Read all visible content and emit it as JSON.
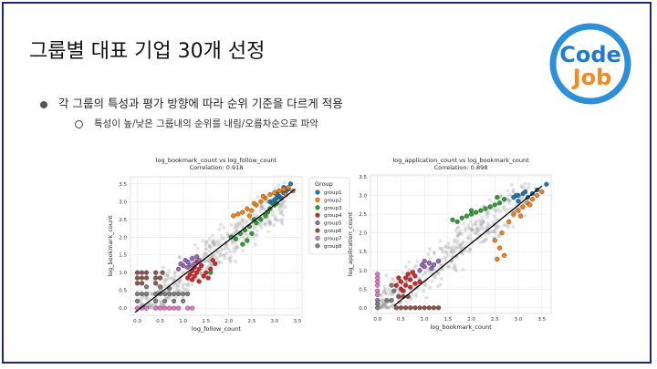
{
  "slide": {
    "title": "그룹별 대표 기업 30개 선정",
    "bullet1": "각 그룹의 특성과 평가 방향에 따라 순위 기준을 다르게 적용",
    "bullet2": "특성이 높/낮은 그룹내의 순위를 내림/오름차순으로 파악"
  },
  "logo": {
    "line1": "Code",
    "line2": "Job",
    "ring_color": "#2e8fd9",
    "text_color_top": "#1f7ad1",
    "text_color_bottom": "#f08a24"
  },
  "colors": {
    "group1": "#1f77b4",
    "group2": "#ff7f0e",
    "group3": "#2ca02c",
    "group4": "#d62728",
    "group5": "#9467bd",
    "group6": "#8c564b",
    "group7": "#e377c2",
    "group8": "#7f7f7f"
  },
  "chart_data": [
    {
      "type": "scatter",
      "title": "log_bookmark_count vs log_follow_count",
      "subtitle": "Correlation: 0.918",
      "xlabel": "log_follow_count",
      "ylabel": "log_bookmark_count",
      "xlim": [
        -0.15,
        3.6
      ],
      "ylim": [
        -0.2,
        3.7
      ],
      "xticks": [
        "0.0",
        "0.5",
        "1.0",
        "1.5",
        "2.0",
        "2.5",
        "3.0",
        "3.5"
      ],
      "yticks": [
        "0.0",
        "0.5",
        "1.0",
        "1.5",
        "2.0",
        "2.5",
        "3.0",
        "3.5"
      ],
      "grid": true,
      "legend": {
        "title": "Group",
        "placement": "outside-right",
        "entries": [
          "group1",
          "group2",
          "group3",
          "group4",
          "group5",
          "group6",
          "group7",
          "group8"
        ]
      },
      "regression": [
        [
          -0.05,
          -0.12
        ],
        [
          3.45,
          3.35
        ]
      ],
      "series": [
        {
          "name": "group1",
          "points": [
            [
              2.9,
              3.0
            ],
            [
              3.0,
              3.05
            ],
            [
              3.05,
              3.1
            ],
            [
              3.1,
              3.15
            ],
            [
              3.15,
              3.1
            ],
            [
              3.2,
              3.25
            ],
            [
              3.3,
              3.35
            ],
            [
              3.35,
              3.5
            ],
            [
              2.95,
              2.95
            ],
            [
              3.05,
              3.2
            ],
            [
              3.25,
              3.3
            ],
            [
              3.1,
              3.3
            ],
            [
              3.2,
              3.4
            ]
          ]
        },
        {
          "name": "group2",
          "points": [
            [
              2.1,
              2.6
            ],
            [
              2.2,
              2.65
            ],
            [
              2.3,
              2.7
            ],
            [
              2.4,
              2.8
            ],
            [
              2.5,
              2.75
            ],
            [
              2.6,
              2.9
            ],
            [
              2.7,
              3.0
            ],
            [
              2.8,
              3.1
            ],
            [
              2.9,
              3.2
            ],
            [
              3.0,
              3.25
            ],
            [
              3.1,
              3.3
            ],
            [
              3.2,
              3.35
            ],
            [
              3.3,
              3.4
            ],
            [
              3.4,
              3.3
            ],
            [
              2.55,
              2.95
            ],
            [
              2.45,
              2.6
            ],
            [
              2.75,
              3.15
            ],
            [
              3.25,
              3.2
            ]
          ]
        },
        {
          "name": "group3",
          "points": [
            [
              2.05,
              2.0
            ],
            [
              2.15,
              1.95
            ],
            [
              2.25,
              2.1
            ],
            [
              2.35,
              2.2
            ],
            [
              2.45,
              2.3
            ],
            [
              2.5,
              2.1
            ],
            [
              2.6,
              2.4
            ],
            [
              2.7,
              2.5
            ],
            [
              2.8,
              2.6
            ],
            [
              2.9,
              2.8
            ],
            [
              3.0,
              2.9
            ],
            [
              2.85,
              2.7
            ],
            [
              1.6,
              1.0
            ],
            [
              2.4,
              1.9
            ],
            [
              2.55,
              2.5
            ],
            [
              3.05,
              2.95
            ],
            [
              2.3,
              1.8
            ]
          ]
        },
        {
          "name": "group4",
          "points": [
            [
              1.1,
              0.85
            ],
            [
              1.15,
              0.95
            ],
            [
              1.2,
              1.05
            ],
            [
              1.25,
              0.9
            ],
            [
              1.3,
              1.0
            ],
            [
              1.35,
              1.1
            ],
            [
              1.4,
              1.2
            ],
            [
              1.5,
              1.0
            ],
            [
              1.6,
              1.1
            ],
            [
              1.45,
              0.9
            ],
            [
              1.2,
              0.8
            ],
            [
              1.3,
              1.3
            ],
            [
              1.7,
              1.25
            ],
            [
              1.55,
              0.85
            ],
            [
              1.35,
              0.75
            ],
            [
              1.25,
              1.15
            ],
            [
              1.65,
              1.35
            ]
          ]
        },
        {
          "name": "group5",
          "points": [
            [
              0.9,
              1.1
            ],
            [
              1.0,
              1.2
            ],
            [
              1.1,
              1.3
            ],
            [
              1.2,
              1.4
            ],
            [
              1.3,
              1.45
            ],
            [
              1.15,
              1.2
            ],
            [
              0.95,
              1.25
            ],
            [
              1.05,
              1.35
            ],
            [
              1.25,
              1.25
            ],
            [
              1.35,
              1.35
            ],
            [
              1.1,
              1.15
            ]
          ]
        },
        {
          "name": "group6",
          "points": [
            [
              0.0,
              0.7
            ],
            [
              0.0,
              0.85
            ],
            [
              0.0,
              1.0
            ],
            [
              0.1,
              0.7
            ],
            [
              0.1,
              0.85
            ],
            [
              0.1,
              1.0
            ],
            [
              0.2,
              0.85
            ],
            [
              0.2,
              1.0
            ],
            [
              0.4,
              0.7
            ],
            [
              0.4,
              0.85
            ],
            [
              0.4,
              1.0
            ],
            [
              0.5,
              0.85
            ],
            [
              0.55,
              1.0
            ]
          ]
        },
        {
          "name": "group7",
          "points": [
            [
              0.0,
              0.0
            ],
            [
              0.1,
              0.0
            ],
            [
              0.2,
              0.0
            ],
            [
              0.4,
              0.0
            ],
            [
              0.5,
              0.0
            ],
            [
              0.6,
              0.0
            ],
            [
              0.7,
              0.0
            ],
            [
              0.8,
              0.0
            ],
            [
              0.9,
              0.0
            ],
            [
              1.1,
              0.0
            ],
            [
              1.2,
              0.0
            ]
          ]
        },
        {
          "name": "group8",
          "points": [
            [
              0.0,
              0.4
            ],
            [
              0.1,
              0.4
            ],
            [
              0.2,
              0.4
            ],
            [
              0.4,
              0.4
            ],
            [
              0.5,
              0.4
            ],
            [
              0.6,
              0.4
            ],
            [
              0.7,
              0.4
            ],
            [
              0.8,
              0.4
            ],
            [
              0.9,
              0.4
            ],
            [
              1.0,
              0.4
            ],
            [
              1.1,
              0.4
            ],
            [
              0.0,
              0.2
            ],
            [
              0.4,
              0.2
            ],
            [
              0.6,
              0.2
            ],
            [
              0.8,
              0.2
            ],
            [
              1.0,
              0.2
            ],
            [
              0.2,
              0.6
            ],
            [
              0.5,
              0.6
            ],
            [
              0.7,
              0.55
            ]
          ]
        }
      ]
    },
    {
      "type": "scatter",
      "title": "log_application_count vs log_bookmark_count",
      "subtitle": "Correlation: 0.898",
      "xlabel": "log_bookmark_count",
      "ylabel": "log_application_count",
      "xlim": [
        -0.15,
        3.7
      ],
      "ylim": [
        -0.15,
        3.55
      ],
      "xticks": [
        "0.0",
        "0.5",
        "1.0",
        "1.5",
        "2.0",
        "2.5",
        "3.0",
        "3.5"
      ],
      "yticks": [
        "0.0",
        "0.5",
        "1.0",
        "1.5",
        "2.0",
        "2.5",
        "3.0",
        "3.5"
      ],
      "grid": true,
      "regression": [
        [
          0.35,
          0.05
        ],
        [
          3.5,
          3.25
        ]
      ],
      "series": [
        {
          "name": "group1",
          "points": [
            [
              2.9,
              2.95
            ],
            [
              3.0,
              3.0
            ],
            [
              3.1,
              3.05
            ],
            [
              3.2,
              2.95
            ],
            [
              3.3,
              3.05
            ],
            [
              3.0,
              2.85
            ],
            [
              3.4,
              3.15
            ],
            [
              3.6,
              3.3
            ],
            [
              3.15,
              3.1
            ],
            [
              2.95,
              3.0
            ]
          ]
        },
        {
          "name": "group2",
          "points": [
            [
              2.5,
              1.8
            ],
            [
              2.6,
              1.6
            ],
            [
              2.7,
              1.4
            ],
            [
              2.8,
              2.3
            ],
            [
              2.9,
              2.5
            ],
            [
              3.0,
              2.6
            ],
            [
              3.1,
              2.7
            ],
            [
              3.2,
              2.8
            ],
            [
              3.3,
              2.9
            ],
            [
              3.4,
              3.0
            ],
            [
              3.5,
              3.1
            ],
            [
              2.55,
              1.3
            ],
            [
              2.65,
              2.0
            ],
            [
              3.05,
              2.45
            ],
            [
              3.25,
              2.75
            ]
          ]
        },
        {
          "name": "group3",
          "points": [
            [
              1.6,
              2.35
            ],
            [
              1.8,
              2.4
            ],
            [
              1.9,
              2.45
            ],
            [
              2.0,
              2.5
            ],
            [
              2.1,
              2.55
            ],
            [
              2.2,
              2.6
            ],
            [
              2.3,
              2.65
            ],
            [
              2.4,
              2.7
            ],
            [
              2.5,
              2.75
            ],
            [
              2.6,
              2.8
            ],
            [
              2.7,
              2.9
            ],
            [
              2.0,
              2.6
            ],
            [
              1.7,
              2.3
            ],
            [
              2.55,
              2.95
            ]
          ]
        },
        {
          "name": "group4",
          "points": [
            [
              0.4,
              0.6
            ],
            [
              0.5,
              0.5
            ],
            [
              0.5,
              0.7
            ],
            [
              0.6,
              0.6
            ],
            [
              0.6,
              0.8
            ],
            [
              0.7,
              0.55
            ],
            [
              0.7,
              0.75
            ],
            [
              0.8,
              0.65
            ],
            [
              0.8,
              0.85
            ],
            [
              0.9,
              0.7
            ],
            [
              0.55,
              0.45
            ],
            [
              0.65,
              0.9
            ],
            [
              0.75,
              0.95
            ],
            [
              0.45,
              0.8
            ]
          ]
        },
        {
          "name": "group5",
          "points": [
            [
              0.9,
              1.0
            ],
            [
              1.0,
              1.1
            ],
            [
              1.1,
              1.2
            ],
            [
              1.2,
              1.15
            ],
            [
              1.3,
              1.25
            ],
            [
              1.0,
              1.25
            ],
            [
              1.15,
              1.05
            ],
            [
              0.95,
              1.15
            ]
          ]
        },
        {
          "name": "group6",
          "points": [
            [
              0.4,
              0.0
            ],
            [
              0.5,
              0.0
            ],
            [
              0.6,
              0.0
            ],
            [
              0.7,
              0.0
            ],
            [
              0.8,
              0.0
            ],
            [
              0.9,
              0.0
            ],
            [
              1.0,
              0.0
            ],
            [
              1.1,
              0.0
            ],
            [
              1.2,
              0.0
            ],
            [
              1.3,
              0.0
            ],
            [
              0.45,
              0.3
            ],
            [
              0.55,
              0.3
            ],
            [
              0.65,
              0.3
            ]
          ]
        },
        {
          "name": "group7",
          "points": [
            [
              0.0,
              0.45
            ],
            [
              0.0,
              0.6
            ],
            [
              0.0,
              0.7
            ],
            [
              0.0,
              0.8
            ],
            [
              0.0,
              0.9
            ],
            [
              0.0,
              0.35
            ]
          ]
        },
        {
          "name": "group8",
          "points": [
            [
              0.0,
              0.0
            ],
            [
              0.0,
              0.2
            ],
            [
              0.2,
              0.2
            ],
            [
              0.3,
              0.2
            ],
            [
              0.35,
              0.45
            ],
            [
              0.3,
              0.6
            ],
            [
              0.0,
              0.1
            ]
          ]
        }
      ]
    }
  ]
}
